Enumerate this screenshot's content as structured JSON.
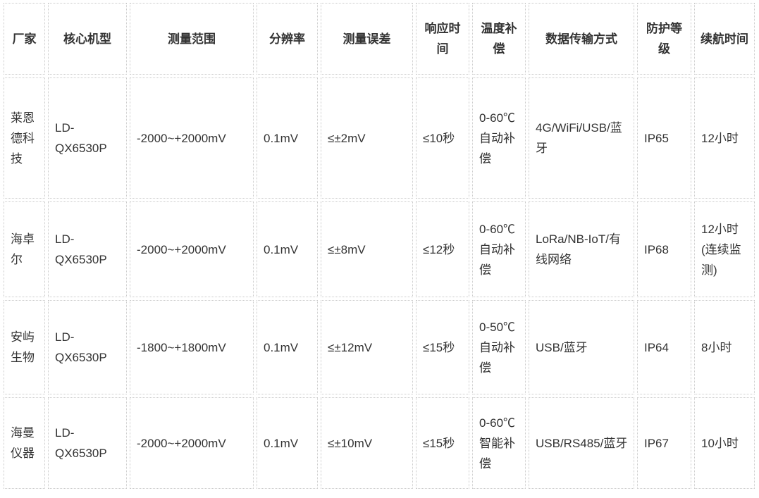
{
  "colors": {
    "text": "#333333",
    "border": "#cbcbcb",
    "background": "#ffffff"
  },
  "table": {
    "columns": [
      "厂家",
      "核心机型",
      "测量范围",
      "分辨率",
      "测量误差",
      "响应时间",
      "温度补偿",
      "数据传输方式",
      "防护等级",
      "续航时间"
    ],
    "rows": [
      {
        "vendor": "莱恩德科技",
        "model": "LD-QX6530P",
        "range": "-2000~+2000mV",
        "resolution": "0.1mV",
        "error": "≤±2mV",
        "response": "≤10秒",
        "temp_comp": "0-60℃自动补偿",
        "transmission": "4G/WiFi/USB/蓝牙",
        "protection": "IP65",
        "battery": "12小时"
      },
      {
        "vendor": "海卓尔",
        "model": "LD-QX6530P",
        "range": "-2000~+2000mV",
        "resolution": "0.1mV",
        "error": "≤±8mV",
        "response": "≤12秒",
        "temp_comp": "0-60℃自动补偿",
        "transmission": "LoRa/NB-IoT/有线网络",
        "protection": "IP68",
        "battery": "12小时 (连续监测)"
      },
      {
        "vendor": "安屿生物",
        "model": "LD-QX6530P",
        "range": "-1800~+1800mV",
        "resolution": "0.1mV",
        "error": "≤±12mV",
        "response": "≤15秒",
        "temp_comp": "0-50℃自动补偿",
        "transmission": "USB/蓝牙",
        "protection": "IP64",
        "battery": "8小时"
      },
      {
        "vendor": "海曼仪器",
        "model": "LD-QX6530P",
        "range": "-2000~+2000mV",
        "resolution": "0.1mV",
        "error": "≤±10mV",
        "response": "≤15秒",
        "temp_comp": "0-60℃智能补偿",
        "transmission": "USB/RS485/蓝牙",
        "protection": "IP67",
        "battery": "10小时"
      }
    ]
  }
}
